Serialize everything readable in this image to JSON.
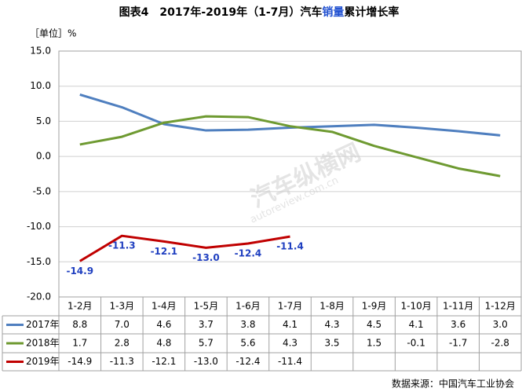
{
  "chart_data": {
    "type": "line",
    "title": [
      "图表4　2017年-2019年（1-7月）汽车",
      "销量",
      "累计增长率"
    ],
    "unit": "［单位］%",
    "source": "数据来源：中国汽车工业协会",
    "watermark": [
      "汽车纵横网",
      "autoreview.com.cn"
    ],
    "categories": [
      "1-2月",
      "1-3月",
      "1-4月",
      "1-5月",
      "1-6月",
      "1-7月",
      "1-8月",
      "1-9月",
      "1-10月",
      "1-11月",
      "1-12月"
    ],
    "series": [
      {
        "name": "2017年",
        "color": "#4f7fbf",
        "values": [
          8.8,
          7.0,
          4.6,
          3.7,
          3.8,
          4.1,
          4.3,
          4.5,
          4.1,
          3.6,
          3.0
        ],
        "value_labels": [
          "8.8",
          "7.0",
          "4.6",
          "3.7",
          "3.8",
          "4.1",
          "4.3",
          "4.5",
          "4.1",
          "3.6",
          "3.0"
        ]
      },
      {
        "name": "2018年",
        "color": "#6e9a31",
        "values": [
          1.7,
          2.8,
          4.8,
          5.7,
          5.6,
          4.3,
          3.5,
          1.5,
          -0.1,
          -1.7,
          -2.8
        ],
        "value_labels": [
          "1.7",
          "2.8",
          "4.8",
          "5.7",
          "5.6",
          "4.3",
          "3.5",
          "1.5",
          "-0.1",
          "-1.7",
          "-2.8"
        ]
      },
      {
        "name": "2019年",
        "color": "#c00000",
        "values": [
          -14.9,
          -11.3,
          -12.1,
          -13.0,
          -12.4,
          -11.4,
          null,
          null,
          null,
          null,
          null
        ],
        "value_labels": [
          "-14.9",
          "-11.3",
          "-12.1",
          "-13.0",
          "-12.4",
          "-11.4",
          null,
          null,
          null,
          null,
          null
        ]
      }
    ],
    "ylim": [
      -20,
      15
    ],
    "yticks": [
      {
        "value": -20,
        "label": "-20.0"
      },
      {
        "value": -15,
        "label": "-15.0"
      },
      {
        "value": -10,
        "label": "-10.0"
      },
      {
        "value": -5,
        "label": "-5.0"
      },
      {
        "value": 0,
        "label": "0.0"
      },
      {
        "value": 5,
        "label": "5.0"
      },
      {
        "value": 10,
        "label": "10.0"
      },
      {
        "value": 15,
        "label": "15.0"
      }
    ],
    "grid": true
  }
}
